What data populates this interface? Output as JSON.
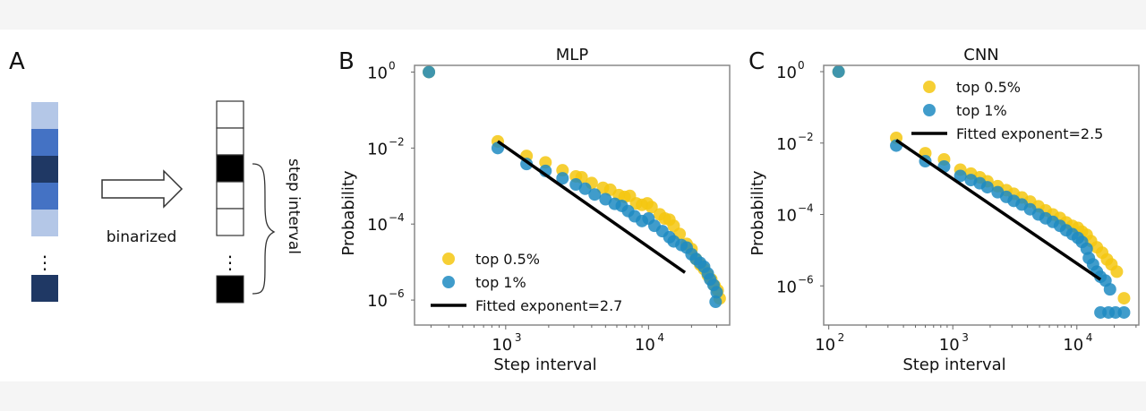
{
  "panel_a": {
    "label": "A",
    "arrow_label": "binarized",
    "brace_label": "step interval",
    "ellipsis": "⋮",
    "colors": {
      "light": "#b4c7e7",
      "medium": "#4472c4",
      "dark": "#1f3864"
    },
    "input_cells": [
      "light",
      "medium",
      "dark",
      "medium",
      "light"
    ],
    "input_last_cell": "dark",
    "binary_cells": [
      0,
      0,
      1,
      0,
      0
    ],
    "binary_last_cell": 1
  },
  "chart_data": [
    {
      "panel_label": "B",
      "type": "scatter",
      "title": "MLP",
      "xlabel": "Step interval",
      "ylabel": "Probability",
      "xscale": "log",
      "yscale": "log",
      "xlim": [
        230,
        37000
      ],
      "ylim": [
        2.2e-07,
        1.5
      ],
      "xticks": [
        {
          "value": 1000,
          "label": "10",
          "exp": "3"
        },
        {
          "value": 10000,
          "label": "10",
          "exp": "4"
        }
      ],
      "yticks": [
        {
          "value": 1,
          "label": "10",
          "exp": "0"
        },
        {
          "value": 0.01,
          "label": "10",
          "exp": "−2"
        },
        {
          "value": 0.0001,
          "label": "10",
          "exp": "−4"
        },
        {
          "value": 1e-06,
          "label": "10",
          "exp": "−6"
        }
      ],
      "grid": false,
      "legend": {
        "placement": "lower-left",
        "entries": [
          {
            "label": "top 0.5%",
            "kind": "marker",
            "color": "#f5c710"
          },
          {
            "label": "top 1%",
            "kind": "marker",
            "color": "#1f8bc2"
          },
          {
            "label": "Fitted exponent=2.7",
            "kind": "line",
            "color": "#000000"
          }
        ]
      },
      "series": [
        {
          "name": "top 0.5%",
          "color": "#f5c710",
          "points": [
            [
              290,
              1.0
            ],
            [
              880,
              0.015
            ],
            [
              1400,
              0.0062
            ],
            [
              1900,
              0.0042
            ],
            [
              2500,
              0.0026
            ],
            [
              3100,
              0.0018
            ],
            [
              3400,
              0.0017
            ],
            [
              4000,
              0.0012
            ],
            [
              4800,
              0.0009
            ],
            [
              5400,
              0.0008
            ],
            [
              6200,
              0.00058
            ],
            [
              6800,
              0.00052
            ],
            [
              7400,
              0.00055
            ],
            [
              8200,
              0.00035
            ],
            [
              9000,
              0.00032
            ],
            [
              9800,
              0.00035
            ],
            [
              10500,
              0.00028
            ],
            [
              12000,
              0.00018
            ],
            [
              13000,
              0.00014
            ],
            [
              14000,
              0.00013
            ],
            [
              15000,
              9e-05
            ],
            [
              16500,
              5.5e-05
            ],
            [
              18500,
              3e-05
            ],
            [
              20000,
              2.2e-05
            ],
            [
              21500,
              1.2e-05
            ],
            [
              23000,
              8.5e-06
            ],
            [
              24500,
              6.5e-06
            ],
            [
              26000,
              4.5e-06
            ],
            [
              27500,
              3.5e-06
            ],
            [
              29000,
              2.4e-06
            ],
            [
              30500,
              1.8e-06
            ],
            [
              31500,
              1.1e-06
            ]
          ]
        },
        {
          "name": "top 1%",
          "color": "#1f8bc2",
          "points": [
            [
              290,
              1.0
            ],
            [
              880,
              0.01
            ],
            [
              1400,
              0.0038
            ],
            [
              1900,
              0.0025
            ],
            [
              2500,
              0.0016
            ],
            [
              3100,
              0.0011
            ],
            [
              3600,
              0.00085
            ],
            [
              4200,
              0.0006
            ],
            [
              5000,
              0.00045
            ],
            [
              5800,
              0.00034
            ],
            [
              6500,
              0.0003
            ],
            [
              7200,
              0.00022
            ],
            [
              8000,
              0.00016
            ],
            [
              9000,
              0.00012
            ],
            [
              10000,
              0.00014
            ],
            [
              11000,
              9e-05
            ],
            [
              12500,
              6.5e-05
            ],
            [
              14000,
              4.5e-05
            ],
            [
              15000,
              3.5e-05
            ],
            [
              17000,
              2.8e-05
            ],
            [
              18500,
              2.4e-05
            ],
            [
              20000,
              1.6e-05
            ],
            [
              21500,
              1.2e-05
            ],
            [
              23000,
              9.5e-06
            ],
            [
              24500,
              7.5e-06
            ],
            [
              26000,
              5e-06
            ],
            [
              27000,
              3.5e-06
            ],
            [
              28500,
              2.5e-06
            ],
            [
              30000,
              1.6e-06
            ],
            [
              29500,
              9e-07
            ]
          ]
        }
      ],
      "fit_line": {
        "label": "Fitted exponent=2.7",
        "exponent": 2.7,
        "x": [
          880,
          18000
        ],
        "y": [
          0.015,
          5.3e-06
        ]
      }
    },
    {
      "panel_label": "C",
      "type": "scatter",
      "title": "CNN",
      "xlabel": "Step interval",
      "ylabel": "Probability",
      "xscale": "log",
      "yscale": "log",
      "xlim": [
        91,
        31600
      ],
      "ylim": [
        8e-08,
        1.5
      ],
      "xticks": [
        {
          "value": 100,
          "label": "10",
          "exp": "2"
        },
        {
          "value": 1000,
          "label": "10",
          "exp": "3"
        },
        {
          "value": 10000,
          "label": "10",
          "exp": "4"
        }
      ],
      "yticks": [
        {
          "value": 1,
          "label": "10",
          "exp": "0"
        },
        {
          "value": 0.01,
          "label": "10",
          "exp": "−2"
        },
        {
          "value": 0.0001,
          "label": "10",
          "exp": "−4"
        },
        {
          "value": 1e-06,
          "label": "10",
          "exp": "−6"
        }
      ],
      "grid": false,
      "legend": {
        "placement": "upper-right",
        "entries": [
          {
            "label": "top 0.5%",
            "kind": "marker",
            "color": "#f5c710"
          },
          {
            "label": "top 1%",
            "kind": "marker",
            "color": "#1f8bc2"
          },
          {
            "label": "Fitted exponent=2.5",
            "kind": "line",
            "color": "#000000"
          }
        ]
      },
      "series": [
        {
          "name": "top 0.5%",
          "color": "#f5c710",
          "points": [
            [
              120,
              1.0
            ],
            [
              350,
              0.014
            ],
            [
              600,
              0.0052
            ],
            [
              850,
              0.0035
            ],
            [
              1150,
              0.0018
            ],
            [
              1400,
              0.0014
            ],
            [
              1650,
              0.0011
            ],
            [
              1900,
              0.00085
            ],
            [
              2300,
              0.00062
            ],
            [
              2700,
              0.00048
            ],
            [
              3100,
              0.00038
            ],
            [
              3600,
              0.0003
            ],
            [
              4200,
              0.00023
            ],
            [
              4900,
              0.00017
            ],
            [
              5600,
              0.00013
            ],
            [
              6400,
              0.0001
            ],
            [
              7300,
              8e-05
            ],
            [
              8200,
              6e-05
            ],
            [
              9200,
              4.8e-05
            ],
            [
              10200,
              4.2e-05
            ],
            [
              11000,
              3.3e-05
            ],
            [
              12000,
              2.7e-05
            ],
            [
              13000,
              1.8e-05
            ],
            [
              14500,
              1.2e-05
            ],
            [
              16000,
              8.5e-06
            ],
            [
              17500,
              5.5e-06
            ],
            [
              19000,
              4e-06
            ],
            [
              21000,
              2.5e-06
            ],
            [
              24000,
              4.5e-07
            ]
          ]
        },
        {
          "name": "top 1%",
          "color": "#1f8bc2",
          "points": [
            [
              120,
              1.0
            ],
            [
              350,
              0.0085
            ],
            [
              600,
              0.0031
            ],
            [
              850,
              0.0022
            ],
            [
              1150,
              0.0012
            ],
            [
              1400,
              0.00092
            ],
            [
              1650,
              0.00075
            ],
            [
              1900,
              0.00058
            ],
            [
              2300,
              0.00042
            ],
            [
              2700,
              0.00031
            ],
            [
              3100,
              0.00024
            ],
            [
              3600,
              0.00019
            ],
            [
              4200,
              0.00014
            ],
            [
              4900,
              0.0001
            ],
            [
              5600,
              7.8e-05
            ],
            [
              6400,
              6.2e-05
            ],
            [
              7300,
              4.8e-05
            ],
            [
              8200,
              3.6e-05
            ],
            [
              9200,
              2.8e-05
            ],
            [
              10200,
              2.2e-05
            ],
            [
              11000,
              1.7e-05
            ],
            [
              12000,
              1.1e-05
            ],
            [
              12500,
              6e-06
            ],
            [
              13500,
              4e-06
            ],
            [
              14500,
              2.5e-06
            ],
            [
              15500,
              1.8e-06
            ],
            [
              17000,
              1.4e-06
            ],
            [
              18500,
              8e-07
            ],
            [
              15500,
              1.8e-07
            ],
            [
              18000,
              1.8e-07
            ],
            [
              20500,
              1.8e-07
            ],
            [
              24000,
              1.8e-07
            ]
          ]
        }
      ],
      "fit_line": {
        "label": "Fitted exponent=2.5",
        "exponent": 2.5,
        "x": [
          350,
          15500
        ],
        "y": [
          0.012,
          1.5e-06
        ]
      }
    }
  ]
}
